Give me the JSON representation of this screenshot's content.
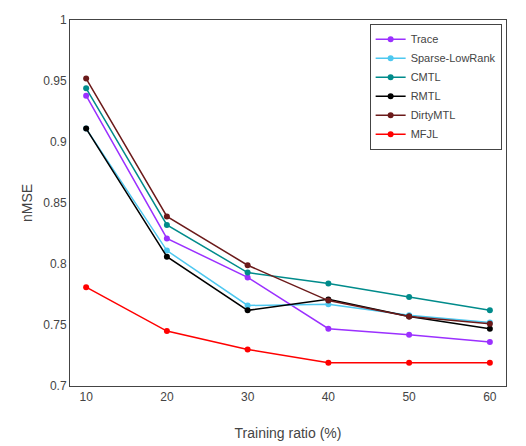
{
  "chart_data": {
    "type": "line",
    "xlabel": "Training ratio (%)",
    "ylabel": "nMSE",
    "x": [
      10,
      20,
      30,
      40,
      50,
      60
    ],
    "series": [
      {
        "name": "Trace",
        "color": "#9B30FF",
        "values": [
          0.938,
          0.821,
          0.789,
          0.747,
          0.742,
          0.736
        ]
      },
      {
        "name": "Sparse-LowRank",
        "color": "#4DC8F0",
        "values": [
          0.911,
          0.811,
          0.766,
          0.767,
          0.758,
          0.752
        ]
      },
      {
        "name": "CMTL",
        "color": "#008B8B",
        "values": [
          0.944,
          0.832,
          0.793,
          0.784,
          0.773,
          0.762
        ]
      },
      {
        "name": "RMTL",
        "color": "#000000",
        "values": [
          0.911,
          0.806,
          0.762,
          0.771,
          0.757,
          0.747
        ]
      },
      {
        "name": "DirtyMTL",
        "color": "#6B1A1A",
        "values": [
          0.952,
          0.839,
          0.799,
          0.77,
          0.757,
          0.751
        ]
      },
      {
        "name": "MFJL",
        "color": "#FF0000",
        "values": [
          0.781,
          0.745,
          0.73,
          0.719,
          0.719,
          0.719
        ]
      }
    ],
    "xlim": [
      8,
      62
    ],
    "ylim": [
      0.7,
      1.0
    ],
    "xticks": [
      10,
      20,
      30,
      40,
      50,
      60
    ],
    "yticks": [
      0.7,
      0.75,
      0.8,
      0.85,
      0.9,
      0.95,
      1.0
    ],
    "marker": "circle",
    "line_style": "solid",
    "grid": false,
    "legend": "upper right"
  }
}
